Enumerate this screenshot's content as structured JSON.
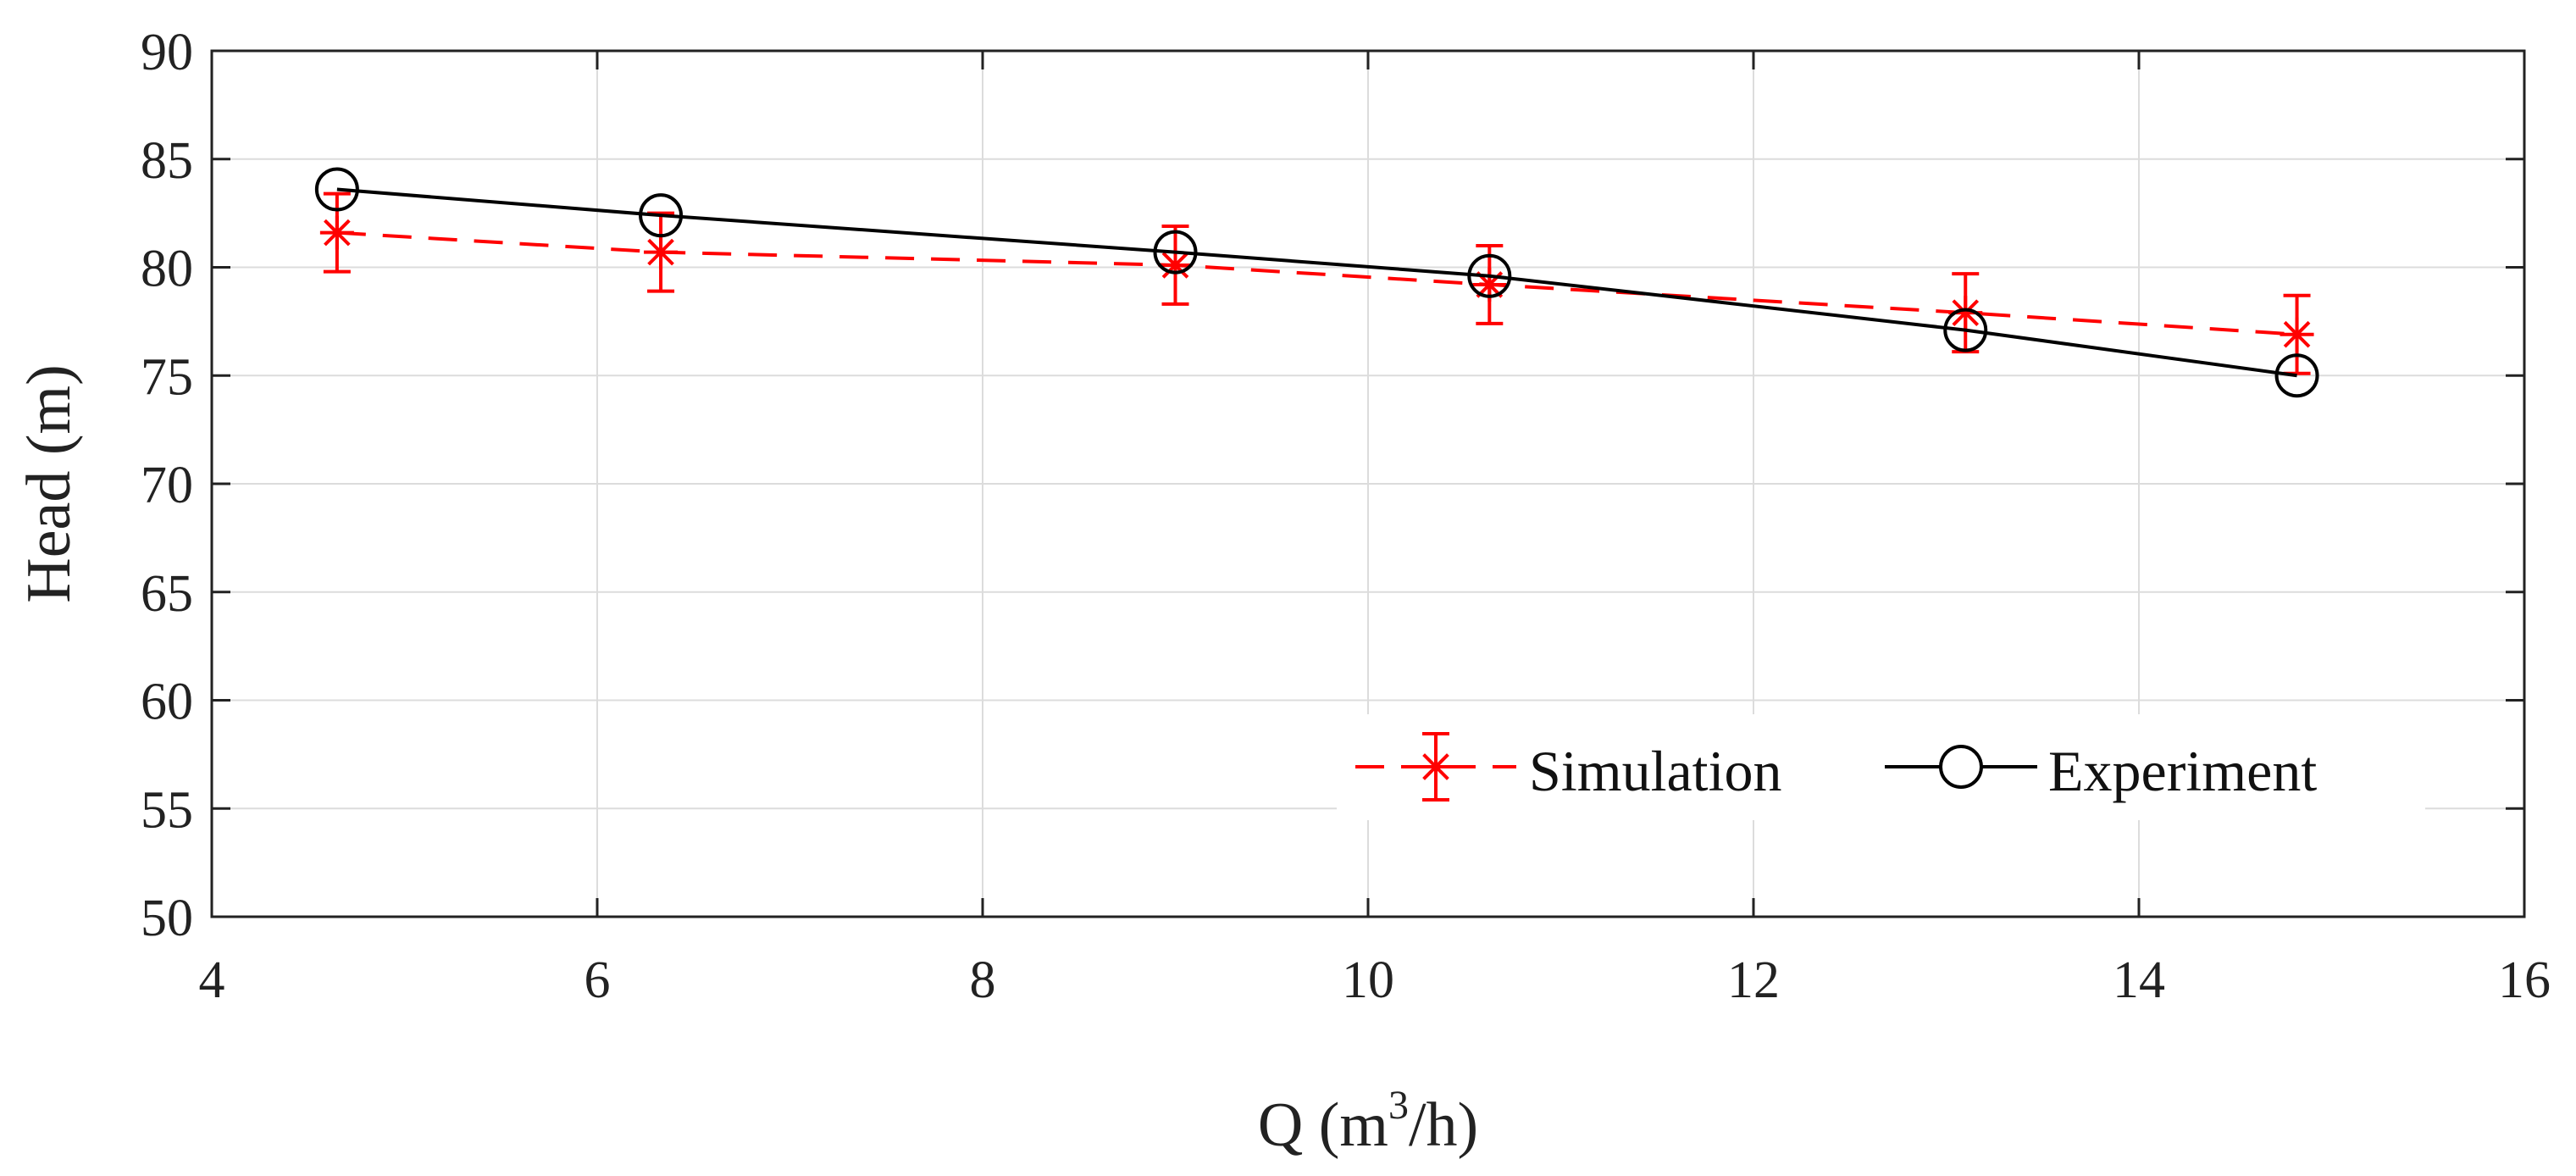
{
  "chart_data": {
    "type": "line",
    "title": "",
    "xlabel": {
      "prefix": "Q (m",
      "sup": "3",
      "suffix": "/h)"
    },
    "ylabel": "Head (m)",
    "xlim": [
      4,
      16
    ],
    "ylim": [
      50,
      90
    ],
    "xticks": [
      4,
      6,
      8,
      10,
      12,
      14,
      16
    ],
    "yticks": [
      50,
      55,
      60,
      65,
      70,
      75,
      80,
      85,
      90
    ],
    "grid": true,
    "legend_position": "bottom-right",
    "series": [
      {
        "name": "Simulation",
        "color": "#ff0000",
        "line_style": "dashed",
        "marker": "asterisk",
        "x": [
          4.65,
          6.33,
          9.0,
          10.63,
          13.1,
          14.82
        ],
        "y": [
          81.6,
          80.7,
          80.1,
          79.2,
          77.9,
          76.9
        ],
        "error": [
          1.8,
          1.8,
          1.8,
          1.8,
          1.8,
          1.8
        ]
      },
      {
        "name": "Experiment",
        "color": "#000000",
        "line_style": "solid",
        "marker": "circle",
        "x": [
          4.65,
          6.33,
          9.0,
          10.63,
          13.1,
          14.82
        ],
        "y": [
          83.6,
          82.4,
          80.7,
          79.6,
          77.1,
          75.0
        ]
      }
    ]
  }
}
